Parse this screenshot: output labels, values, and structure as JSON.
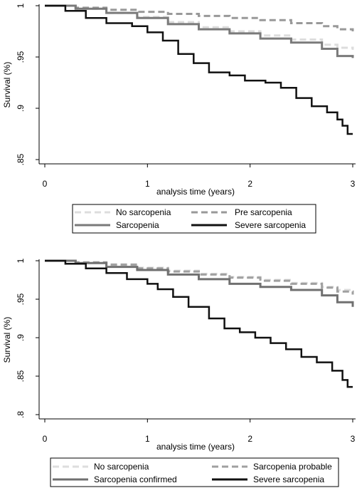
{
  "chart_data": [
    {
      "type": "line",
      "title": "",
      "xlabel": "analysis time (years)",
      "ylabel": "Survival (%)",
      "xlim": [
        0,
        3
      ],
      "ylim": [
        0.85,
        1.0
      ],
      "x_ticks": [
        0,
        1,
        2,
        3
      ],
      "x_tick_labels": [
        "0",
        "1",
        "2",
        "3"
      ],
      "y_ticks": [
        0.85,
        0.9,
        0.95,
        1.0
      ],
      "y_tick_labels": [
        ".85",
        ".9",
        ".95",
        "1"
      ],
      "grid": false,
      "legend_position": "bottom",
      "series": [
        {
          "name": "No sarcopenia",
          "color": "#dddddd",
          "dash": "dashed",
          "points": [
            [
              0,
              1.0
            ],
            [
              0.3,
              0.997
            ],
            [
              0.6,
              0.993
            ],
            [
              0.9,
              0.989
            ],
            [
              1.2,
              0.984
            ],
            [
              1.5,
              0.979
            ],
            [
              1.8,
              0.975
            ],
            [
              2.1,
              0.971
            ],
            [
              2.4,
              0.967
            ],
            [
              2.7,
              0.962
            ],
            [
              2.85,
              0.959
            ],
            [
              3.0,
              0.957
            ]
          ]
        },
        {
          "name": "Pre sarcopenia",
          "color": "#999999",
          "dash": "dashed",
          "points": [
            [
              0,
              1.0
            ],
            [
              0.3,
              0.998
            ],
            [
              0.6,
              0.996
            ],
            [
              0.9,
              0.994
            ],
            [
              1.2,
              0.992
            ],
            [
              1.5,
              0.99
            ],
            [
              1.8,
              0.988
            ],
            [
              2.1,
              0.986
            ],
            [
              2.4,
              0.983
            ],
            [
              2.7,
              0.98
            ],
            [
              2.85,
              0.977
            ],
            [
              3.0,
              0.975
            ]
          ]
        },
        {
          "name": "Sarcopenia",
          "color": "#7a7a7a",
          "dash": "solid",
          "points": [
            [
              0,
              1.0
            ],
            [
              0.3,
              0.997
            ],
            [
              0.6,
              0.993
            ],
            [
              0.9,
              0.988
            ],
            [
              1.2,
              0.982
            ],
            [
              1.5,
              0.977
            ],
            [
              1.8,
              0.973
            ],
            [
              2.1,
              0.968
            ],
            [
              2.4,
              0.964
            ],
            [
              2.7,
              0.958
            ],
            [
              2.85,
              0.951
            ],
            [
              3.0,
              0.949
            ]
          ]
        },
        {
          "name": "Severe sarcopenia",
          "color": "#111111",
          "dash": "solid",
          "points": [
            [
              0,
              1.0
            ],
            [
              0.2,
              0.995
            ],
            [
              0.4,
              0.988
            ],
            [
              0.6,
              0.983
            ],
            [
              0.85,
              0.98
            ],
            [
              1.0,
              0.974
            ],
            [
              1.15,
              0.966
            ],
            [
              1.3,
              0.953
            ],
            [
              1.45,
              0.944
            ],
            [
              1.6,
              0.935
            ],
            [
              1.8,
              0.932
            ],
            [
              1.95,
              0.927
            ],
            [
              2.15,
              0.925
            ],
            [
              2.3,
              0.92
            ],
            [
              2.45,
              0.91
            ],
            [
              2.6,
              0.902
            ],
            [
              2.75,
              0.896
            ],
            [
              2.85,
              0.889
            ],
            [
              2.9,
              0.883
            ],
            [
              2.95,
              0.875
            ],
            [
              3.0,
              0.875
            ]
          ]
        }
      ],
      "legend": {
        "entries": [
          "No sarcopenia",
          "Pre sarcopenia",
          "Sarcopenia",
          "Severe sarcopenia"
        ]
      }
    },
    {
      "type": "line",
      "title": "",
      "xlabel": "analysis time (years)",
      "ylabel": "Survival (%)",
      "xlim": [
        0,
        3
      ],
      "ylim": [
        0.8,
        1.0
      ],
      "x_ticks": [
        0,
        1,
        2,
        3
      ],
      "x_tick_labels": [
        "0",
        "1",
        "2",
        "3"
      ],
      "y_ticks": [
        0.8,
        0.85,
        0.9,
        0.95,
        1.0
      ],
      "y_tick_labels": [
        ".8",
        ".85",
        ".9",
        ".95",
        "1"
      ],
      "grid": false,
      "legend_position": "bottom",
      "series": [
        {
          "name": "No sarcopenia",
          "color": "#dddddd",
          "dash": "dashed",
          "points": [
            [
              0,
              1.0
            ],
            [
              0.3,
              0.998
            ],
            [
              0.6,
              0.995
            ],
            [
              0.9,
              0.991
            ],
            [
              1.2,
              0.987
            ],
            [
              1.5,
              0.983
            ],
            [
              1.8,
              0.979
            ],
            [
              2.1,
              0.975
            ],
            [
              2.4,
              0.971
            ],
            [
              2.7,
              0.966
            ],
            [
              2.85,
              0.962
            ],
            [
              3.0,
              0.959
            ]
          ]
        },
        {
          "name": "Sarcopenia probable",
          "color": "#a0a0a0",
          "dash": "dashed",
          "points": [
            [
              0,
              1.0
            ],
            [
              0.3,
              0.998
            ],
            [
              0.6,
              0.995
            ],
            [
              0.9,
              0.99
            ],
            [
              1.2,
              0.986
            ],
            [
              1.5,
              0.982
            ],
            [
              1.8,
              0.978
            ],
            [
              2.1,
              0.974
            ],
            [
              2.4,
              0.97
            ],
            [
              2.7,
              0.965
            ],
            [
              2.85,
              0.96
            ],
            [
              3.0,
              0.956
            ]
          ]
        },
        {
          "name": "Sarcopenia confirmed",
          "color": "#707070",
          "dash": "solid",
          "points": [
            [
              0,
              1.0
            ],
            [
              0.3,
              0.997
            ],
            [
              0.6,
              0.992
            ],
            [
              0.9,
              0.988
            ],
            [
              1.2,
              0.982
            ],
            [
              1.5,
              0.976
            ],
            [
              1.8,
              0.97
            ],
            [
              2.1,
              0.966
            ],
            [
              2.4,
              0.962
            ],
            [
              2.7,
              0.955
            ],
            [
              2.85,
              0.946
            ],
            [
              3.0,
              0.94
            ]
          ]
        },
        {
          "name": "Severe sarcopenia",
          "color": "#111111",
          "dash": "solid",
          "points": [
            [
              0,
              1.0
            ],
            [
              0.2,
              0.996
            ],
            [
              0.4,
              0.99
            ],
            [
              0.6,
              0.984
            ],
            [
              0.8,
              0.976
            ],
            [
              1.0,
              0.97
            ],
            [
              1.1,
              0.963
            ],
            [
              1.25,
              0.953
            ],
            [
              1.4,
              0.94
            ],
            [
              1.6,
              0.925
            ],
            [
              1.75,
              0.912
            ],
            [
              1.9,
              0.907
            ],
            [
              2.05,
              0.9
            ],
            [
              2.2,
              0.893
            ],
            [
              2.35,
              0.885
            ],
            [
              2.5,
              0.875
            ],
            [
              2.65,
              0.868
            ],
            [
              2.8,
              0.857
            ],
            [
              2.9,
              0.845
            ],
            [
              2.95,
              0.836
            ],
            [
              3.0,
              0.836
            ]
          ]
        }
      ],
      "legend": {
        "entries": [
          "No sarcopenia",
          "Sarcopenia probable",
          "Sarcopenia confirmed",
          "Severe sarcopenia"
        ]
      }
    }
  ]
}
